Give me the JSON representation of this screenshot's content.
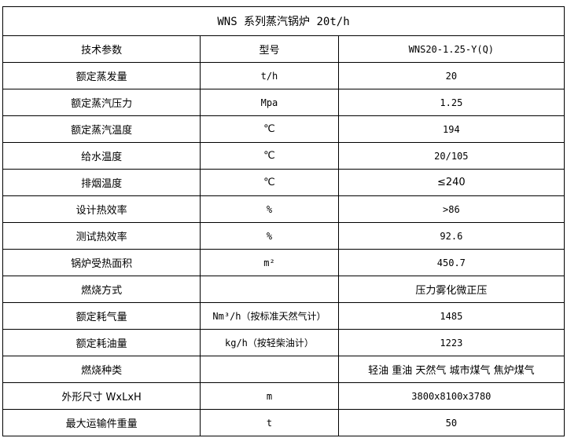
{
  "title": "WNS 系列蒸汽锅炉 20t/h",
  "rows": [
    {
      "param": "技术参数",
      "unit": "型号",
      "value": "WNS20-1.25-Y(Q)"
    },
    {
      "param": "额定蒸发量",
      "unit": "t/h",
      "value": "20"
    },
    {
      "param": "额定蒸汽压力",
      "unit": "Mpa",
      "value": "1.25"
    },
    {
      "param": "额定蒸汽温度",
      "unit": "℃",
      "value": "194"
    },
    {
      "param": "给水温度",
      "unit": "℃",
      "value": "20/105"
    },
    {
      "param": "排烟温度",
      "unit": "℃",
      "value": "≤240"
    },
    {
      "param": "设计热效率",
      "unit": "%",
      "value": ">86"
    },
    {
      "param": "测试热效率",
      "unit": "%",
      "value": "92.6"
    },
    {
      "param": "锅炉受热面积",
      "unit": "m²",
      "value": "450.7"
    },
    {
      "param": "燃烧方式",
      "unit": "",
      "value": "压力雾化微正压"
    },
    {
      "param": "额定耗气量",
      "unit": "Nm³/h（按标准天然气计）",
      "value": "1485"
    },
    {
      "param": "额定耗油量",
      "unit": "kg/h（按轻柴油计）",
      "value": "1223"
    },
    {
      "param": "燃烧种类",
      "unit": "",
      "value": "轻油 重油 天然气 城市煤气 焦炉煤气"
    },
    {
      "param": "外形尺寸 WxLxH",
      "unit": "m",
      "value": "3800x8100x3780"
    },
    {
      "param": "最大运输件重量",
      "unit": "t",
      "value": "50"
    }
  ]
}
